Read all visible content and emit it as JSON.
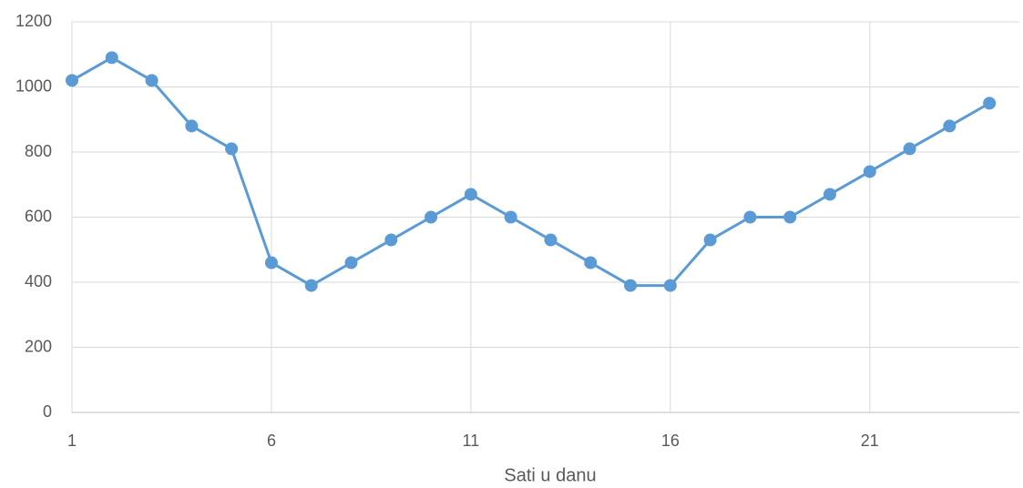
{
  "chart_data": {
    "type": "line",
    "x_label": "Sati u danu",
    "x": [
      1,
      2,
      3,
      4,
      5,
      6,
      7,
      8,
      9,
      10,
      11,
      12,
      13,
      14,
      15,
      16,
      17,
      18,
      19,
      20,
      21,
      22,
      23,
      24
    ],
    "series": [
      {
        "color": "#5b9bd5",
        "values": [
          1020,
          1090,
          1020,
          880,
          810,
          460,
          390,
          460,
          530,
          600,
          670,
          600,
          530,
          460,
          390,
          390,
          530,
          600,
          600,
          670,
          740,
          810,
          880,
          950
        ]
      }
    ],
    "xlim": [
      1,
      24.75
    ],
    "xticks": [
      1,
      6,
      11,
      16,
      21
    ],
    "ylim": [
      0,
      1200
    ],
    "yticks": [
      0,
      200,
      400,
      600,
      800,
      1000,
      1200
    ],
    "grid": true
  }
}
